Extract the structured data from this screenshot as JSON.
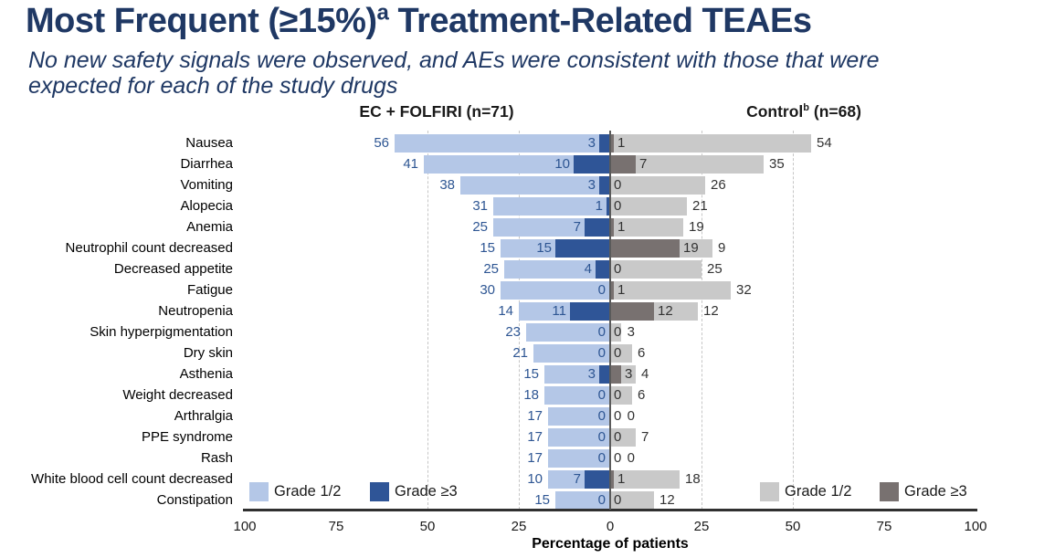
{
  "title": {
    "prefix": "Most Frequent (≥15%)",
    "superscript": "a",
    "suffix": " Treatment-Related TEAEs"
  },
  "subtitle": {
    "line1": "No new safety signals were observed, and AEs were consistent with those that were",
    "line2": "expected for each of the study drugs"
  },
  "headers": {
    "left": "EC + FOLFIRI (n=71)",
    "right_name": "Control",
    "right_superscript": "b",
    "right_n": " (n=68)"
  },
  "legend_left": {
    "grade12": "Grade 1/2",
    "grade3plus": "Grade ≥3"
  },
  "legend_right": {
    "grade12": "Grade 1/2",
    "grade3plus": "Grade ≥3"
  },
  "colors": {
    "navy_title": "#1F3864",
    "light_blue": "#B4C7E7",
    "dark_blue": "#2F5597",
    "light_gray": "#C9C9C9",
    "dark_gray": "#787170"
  },
  "chart_data": {
    "type": "bar",
    "orientation": "horizontal-diverging-stacked",
    "xlabel": "Percentage of patients",
    "x_ticks": [
      "100",
      "75",
      "50",
      "25",
      "0",
      "25",
      "50",
      "75",
      "100"
    ],
    "axis_range_each_side": [
      0,
      100
    ],
    "gridlines_pct": [
      25,
      50
    ],
    "grid": "dashed-vertical",
    "legend_position": "bottom-inside",
    "categories": [
      "Nausea",
      "Diarrhea",
      "Vomiting",
      "Alopecia",
      "Anemia",
      "Neutrophil count decreased",
      "Decreased appetite",
      "Fatigue",
      "Neutropenia",
      "Skin hyperpigmentation",
      "Dry skin",
      "Asthenia",
      "Weight decreased",
      "Arthralgia",
      "PPE syndrome",
      "Rash",
      "White blood cell count decreased",
      "Constipation"
    ],
    "series": [
      {
        "name": "EC + FOLFIRI Grade 1/2",
        "side": "left",
        "color_key": "light_blue",
        "values": [
          56,
          41,
          38,
          31,
          25,
          15,
          25,
          30,
          14,
          23,
          21,
          15,
          18,
          17,
          17,
          17,
          10,
          15
        ]
      },
      {
        "name": "EC + FOLFIRI Grade ≥3",
        "side": "left",
        "color_key": "dark_blue",
        "values": [
          3,
          10,
          3,
          1,
          7,
          15,
          4,
          0,
          11,
          0,
          0,
          3,
          0,
          0,
          0,
          0,
          7,
          0
        ]
      },
      {
        "name": "Control Grade ≥3",
        "side": "right",
        "color_key": "dark_gray",
        "values": [
          1,
          7,
          0,
          0,
          1,
          19,
          0,
          1,
          12,
          0,
          0,
          3,
          0,
          0,
          0,
          0,
          1,
          0
        ]
      },
      {
        "name": "Control Grade 1/2",
        "side": "right",
        "color_key": "light_gray",
        "values": [
          54,
          35,
          26,
          21,
          19,
          9,
          25,
          32,
          12,
          3,
          6,
          4,
          6,
          0,
          7,
          0,
          18,
          12
        ]
      }
    ]
  }
}
